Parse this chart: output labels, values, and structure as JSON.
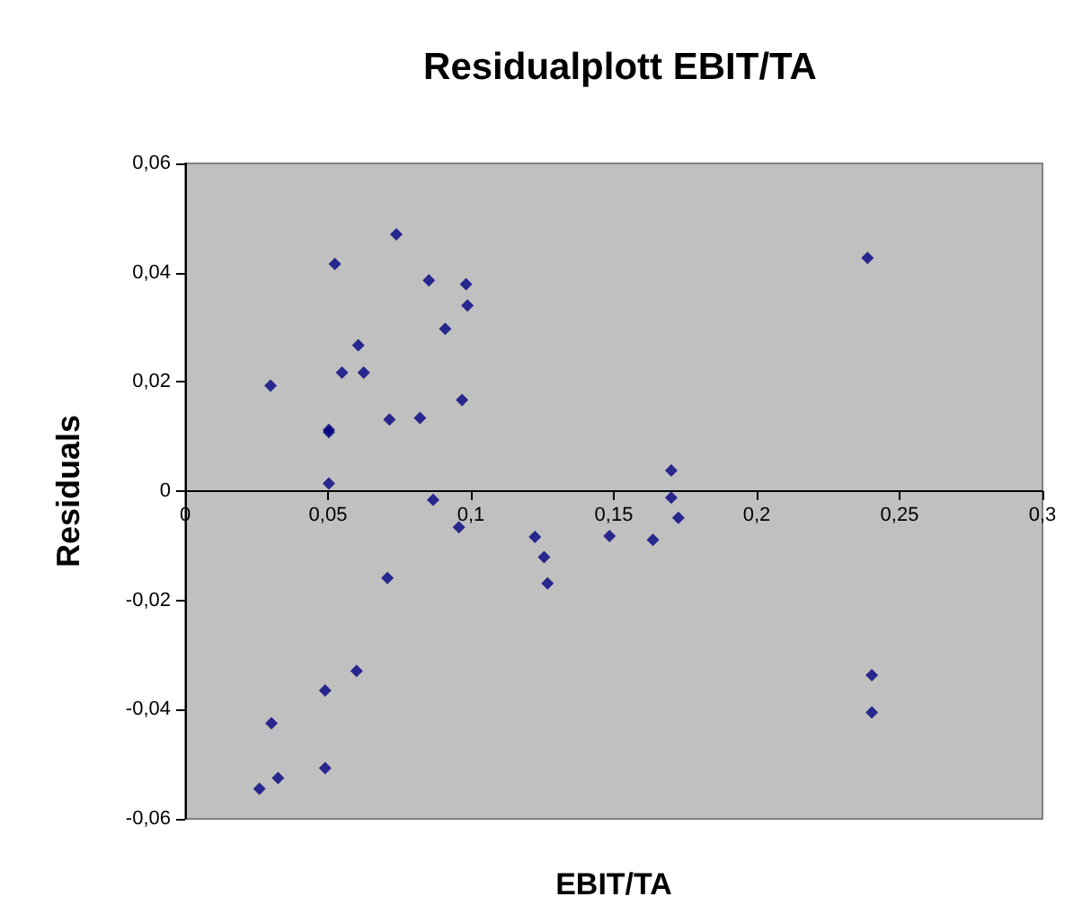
{
  "chart_data": {
    "type": "scatter",
    "title": "Residualplott EBIT/TA",
    "xlabel": "EBIT/TA",
    "ylabel": "Residuals",
    "x": [
      0.0299,
      0.0524,
      0.0739,
      0.0853,
      0.0983,
      0.0988,
      0.091,
      0.0606,
      0.0549,
      0.0625,
      0.0969,
      0.0715,
      0.0822,
      0.0503,
      0.0503,
      0.0503,
      0.0868,
      0.0958,
      0.1224,
      0.0708,
      0.06,
      0.049,
      0.0302,
      0.049,
      0.0325,
      0.026,
      0.2388,
      0.1701,
      0.1701,
      0.1726,
      0.1256,
      0.1268,
      0.1485,
      0.1637,
      0.2403,
      0.2403
    ],
    "values": [
      0.0193,
      0.0416,
      0.047,
      0.0386,
      0.0379,
      0.034,
      0.0297,
      0.0267,
      0.0217,
      0.0217,
      0.0167,
      0.0131,
      0.0134,
      0.0112,
      0.0108,
      0.0014,
      -0.0016,
      -0.0066,
      -0.0084,
      -0.0159,
      -0.0329,
      -0.0365,
      -0.0425,
      -0.0507,
      -0.0525,
      -0.0545,
      0.0427,
      0.0038,
      -0.0012,
      -0.0049,
      -0.0121,
      -0.0169,
      -0.0082,
      -0.0089,
      -0.0337,
      -0.0405
    ],
    "color": "#000080",
    "marker": "diamond",
    "grid": false,
    "xlim": [
      0,
      0.3
    ],
    "xticks": [
      0,
      {
        "value": 0.05,
        "label": "0,05"
      },
      {
        "value": 0.1,
        "label": "0,1"
      },
      {
        "value": 0.15,
        "label": "0,15"
      },
      {
        "value": 0.2,
        "label": "0,2"
      },
      {
        "value": 0.25,
        "label": "0,25"
      },
      {
        "value": 0.3,
        "label": "0,3"
      }
    ],
    "ylim": [
      -0.06,
      0.06
    ],
    "yticks": [
      {
        "value": -0.06,
        "label": "-0,06"
      },
      {
        "value": -0.04,
        "label": "-0,04"
      },
      {
        "value": -0.02,
        "label": "-0,02"
      },
      0,
      {
        "value": 0.02,
        "label": "0,02"
      },
      {
        "value": 0.04,
        "label": "0,04"
      },
      {
        "value": 0.06,
        "label": "0,06"
      }
    ]
  }
}
